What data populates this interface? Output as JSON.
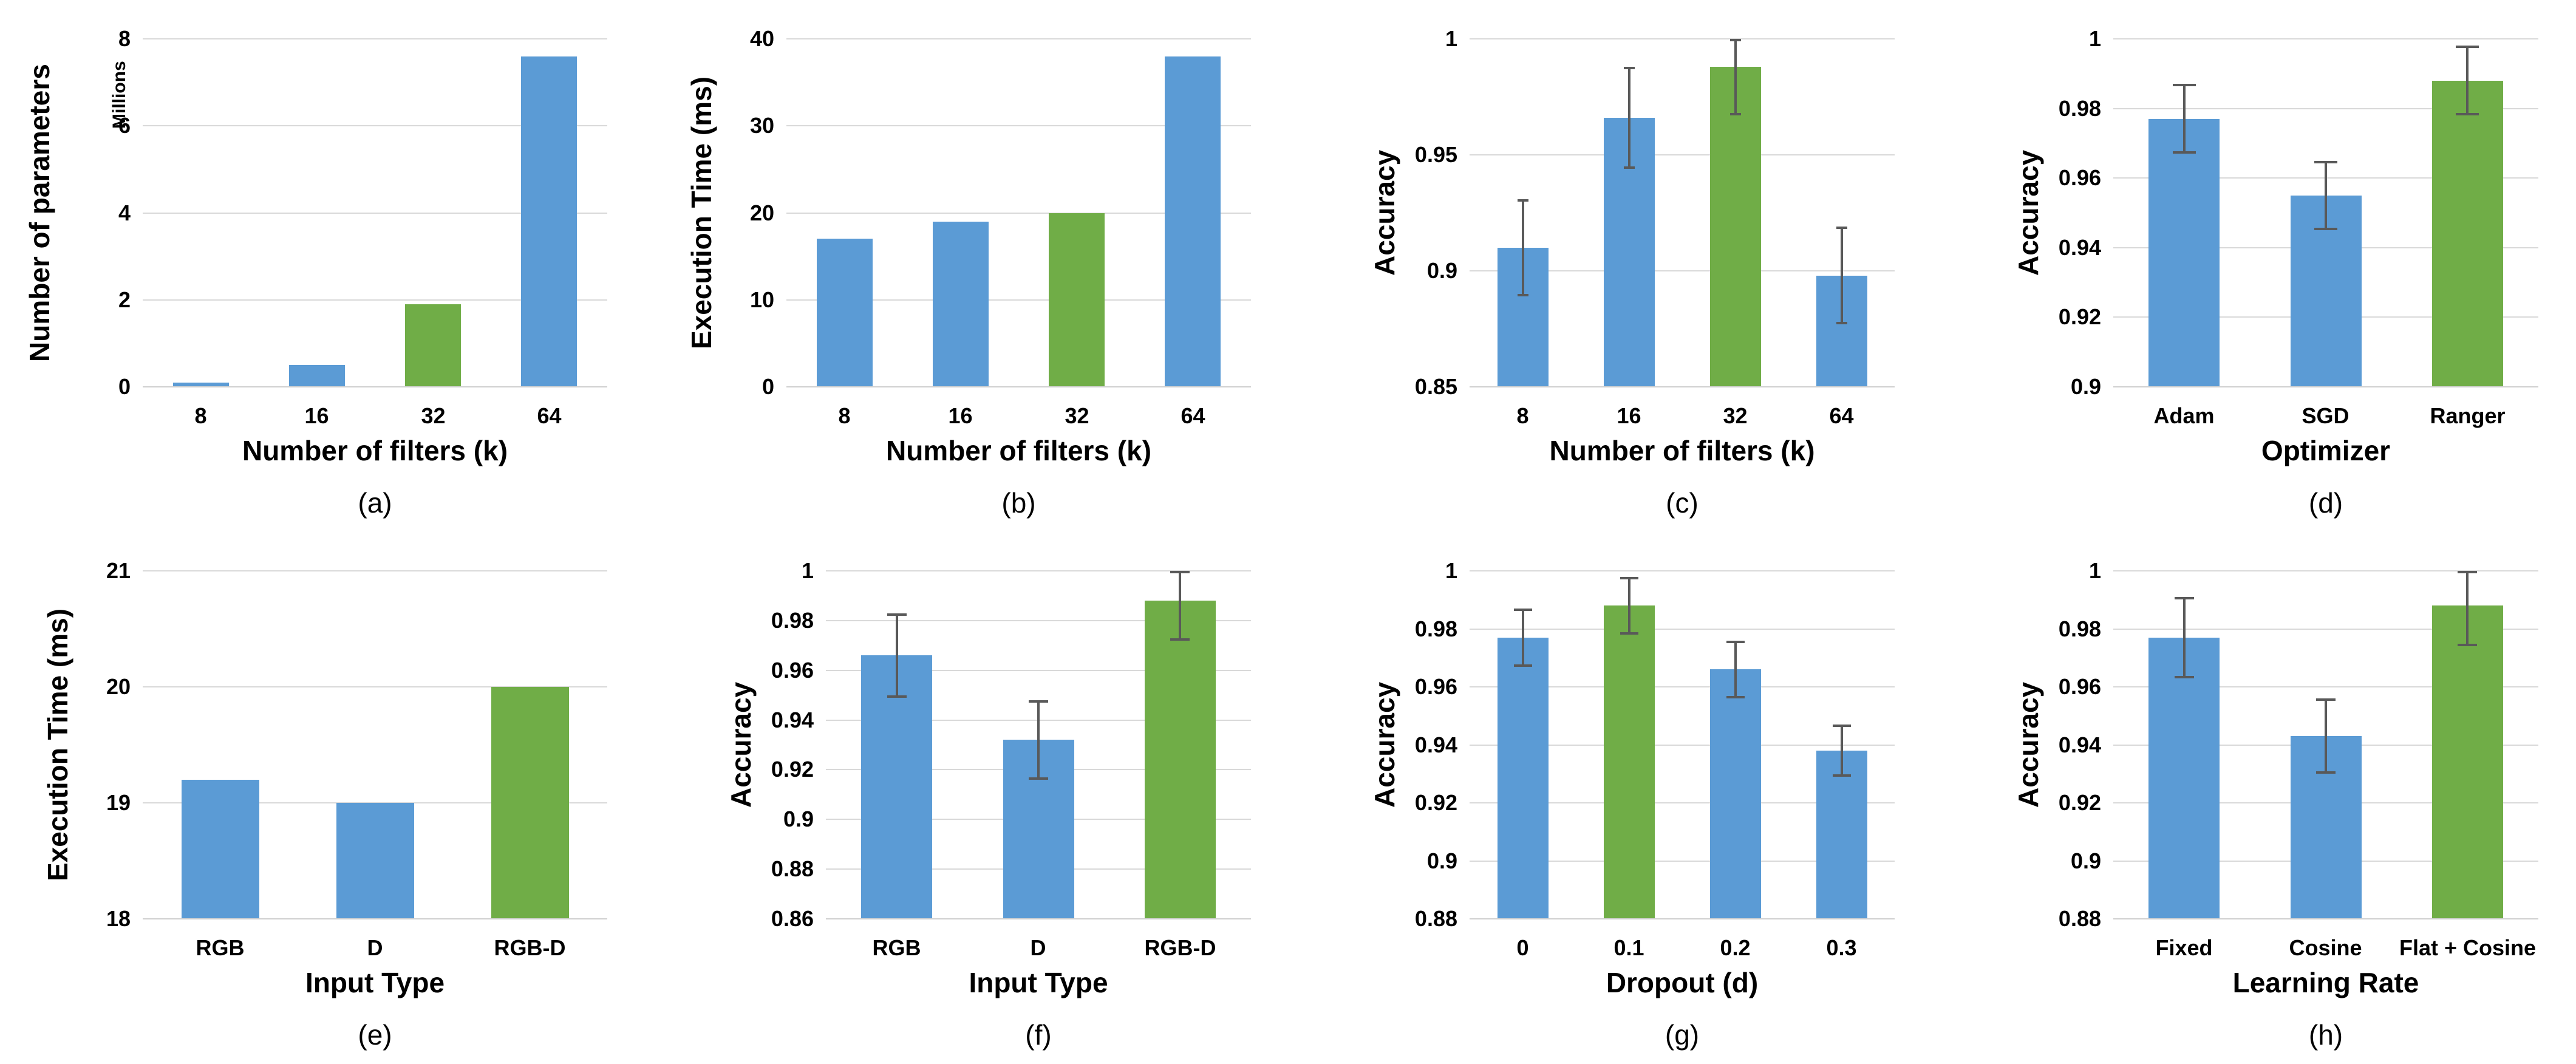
{
  "figure": {
    "description": "Grid of eight bar charts (a)-(h) showing ablation results: parameters, execution time and accuracy versus number of filters, optimizer, input type, dropout and learning rate",
    "background": "#FFFFFF"
  },
  "colors": {
    "bar_default": "#5B9BD5",
    "bar_highlight": "#70AD47",
    "error_bar": "#595959",
    "gridline": "#D9D9D9",
    "axis_line": "#D0D0D0",
    "text": "#000000"
  },
  "chart_data": [
    {
      "id": "a",
      "type": "bar",
      "caption": "(a)",
      "xlabel": "Number of filters (k)",
      "ylabel": "Number of parameters",
      "y_unit": "Millions",
      "categories": [
        "8",
        "16",
        "32",
        "64"
      ],
      "values": [
        0.1,
        0.5,
        1.9,
        7.6
      ],
      "errors": null,
      "highlight_index": 2,
      "ylim": [
        0,
        8
      ],
      "yticks": [
        0,
        2,
        4,
        6,
        8
      ],
      "ytick_labels": [
        "0",
        "2",
        "4",
        "6",
        "8"
      ],
      "grid": true,
      "legend": "none"
    },
    {
      "id": "b",
      "type": "bar",
      "caption": "(b)",
      "xlabel": "Number of filters (k)",
      "ylabel": "Execution Time (ms)",
      "y_unit": null,
      "categories": [
        "8",
        "16",
        "32",
        "64"
      ],
      "values": [
        17,
        19,
        20,
        38
      ],
      "errors": null,
      "highlight_index": 2,
      "ylim": [
        0,
        40
      ],
      "yticks": [
        0,
        10,
        20,
        30,
        40
      ],
      "ytick_labels": [
        "0",
        "10",
        "20",
        "30",
        "40"
      ],
      "grid": true,
      "legend": "none"
    },
    {
      "id": "c",
      "type": "bar",
      "caption": "(c)",
      "xlabel": "Number of filters (k)",
      "ylabel": "Accuracy",
      "y_unit": null,
      "categories": [
        "8",
        "16",
        "32",
        "64"
      ],
      "values": [
        0.91,
        0.966,
        0.988,
        0.898
      ],
      "errors": [
        0.021,
        0.022,
        0.021,
        0.021
      ],
      "highlight_index": 2,
      "ylim": [
        0.85,
        1
      ],
      "yticks": [
        0.85,
        0.9,
        0.95,
        1
      ],
      "ytick_labels": [
        "0.85",
        "0.9",
        "0.95",
        "1"
      ],
      "grid": true,
      "legend": "none"
    },
    {
      "id": "d",
      "type": "bar",
      "caption": "(d)",
      "xlabel": "Optimizer",
      "ylabel": "Accuracy",
      "y_unit": null,
      "categories": [
        "Adam",
        "SGD",
        "Ranger"
      ],
      "values": [
        0.977,
        0.955,
        0.988
      ],
      "errors": [
        0.01,
        0.01,
        0.01
      ],
      "highlight_index": 2,
      "ylim": [
        0.9,
        1
      ],
      "yticks": [
        0.9,
        0.92,
        0.94,
        0.96,
        0.98,
        1
      ],
      "ytick_labels": [
        "0.9",
        "0.92",
        "0.94",
        "0.96",
        "0.98",
        "1"
      ],
      "grid": true,
      "legend": "none"
    },
    {
      "id": "e",
      "type": "bar",
      "caption": "(e)",
      "xlabel": "Input Type",
      "ylabel": "Execution Time (ms)",
      "y_unit": null,
      "categories": [
        "RGB",
        "D",
        "RGB-D"
      ],
      "values": [
        19.2,
        19,
        20
      ],
      "errors": null,
      "highlight_index": 2,
      "ylim": [
        18,
        21
      ],
      "yticks": [
        18,
        19,
        20,
        21
      ],
      "ytick_labels": [
        "18",
        "19",
        "20",
        "21"
      ],
      "grid": true,
      "legend": "none"
    },
    {
      "id": "f",
      "type": "bar",
      "caption": "(f)",
      "xlabel": "Input Type",
      "ylabel": "Accuracy",
      "y_unit": null,
      "categories": [
        "RGB",
        "D",
        "RGB-D"
      ],
      "values": [
        0.966,
        0.932,
        0.988
      ],
      "errors": [
        0.017,
        0.016,
        0.016
      ],
      "highlight_index": 2,
      "ylim": [
        0.86,
        1
      ],
      "yticks": [
        0.86,
        0.88,
        0.9,
        0.92,
        0.94,
        0.96,
        0.98,
        1
      ],
      "ytick_labels": [
        "0.86",
        "0.88",
        "0.9",
        "0.92",
        "0.94",
        "0.96",
        "0.98",
        "1"
      ],
      "grid": true,
      "legend": "none"
    },
    {
      "id": "g",
      "type": "bar",
      "caption": "(g)",
      "xlabel": "Dropout (d)",
      "ylabel": "Accuracy",
      "y_unit": null,
      "categories": [
        "0",
        "0.1",
        "0.2",
        "0.3"
      ],
      "values": [
        0.977,
        0.988,
        0.966,
        0.938
      ],
      "errors": [
        0.01,
        0.01,
        0.01,
        0.009
      ],
      "highlight_index": 1,
      "ylim": [
        0.88,
        1
      ],
      "yticks": [
        0.88,
        0.9,
        0.92,
        0.94,
        0.96,
        0.98,
        1
      ],
      "ytick_labels": [
        "0.88",
        "0.9",
        "0.92",
        "0.94",
        "0.96",
        "0.98",
        "1"
      ],
      "grid": true,
      "legend": "none"
    },
    {
      "id": "h",
      "type": "bar",
      "caption": "(h)",
      "xlabel": "Learning Rate",
      "ylabel": "Accuracy",
      "y_unit": null,
      "categories": [
        "Fixed",
        "Cosine",
        "Flat + Cosine"
      ],
      "values": [
        0.977,
        0.943,
        0.988
      ],
      "errors": [
        0.014,
        0.013,
        0.014
      ],
      "highlight_index": 2,
      "ylim": [
        0.88,
        1
      ],
      "yticks": [
        0.88,
        0.9,
        0.92,
        0.94,
        0.96,
        0.98,
        1
      ],
      "ytick_labels": [
        "0.88",
        "0.9",
        "0.92",
        "0.94",
        "0.96",
        "0.98",
        "1"
      ],
      "grid": true,
      "legend": "none"
    }
  ]
}
